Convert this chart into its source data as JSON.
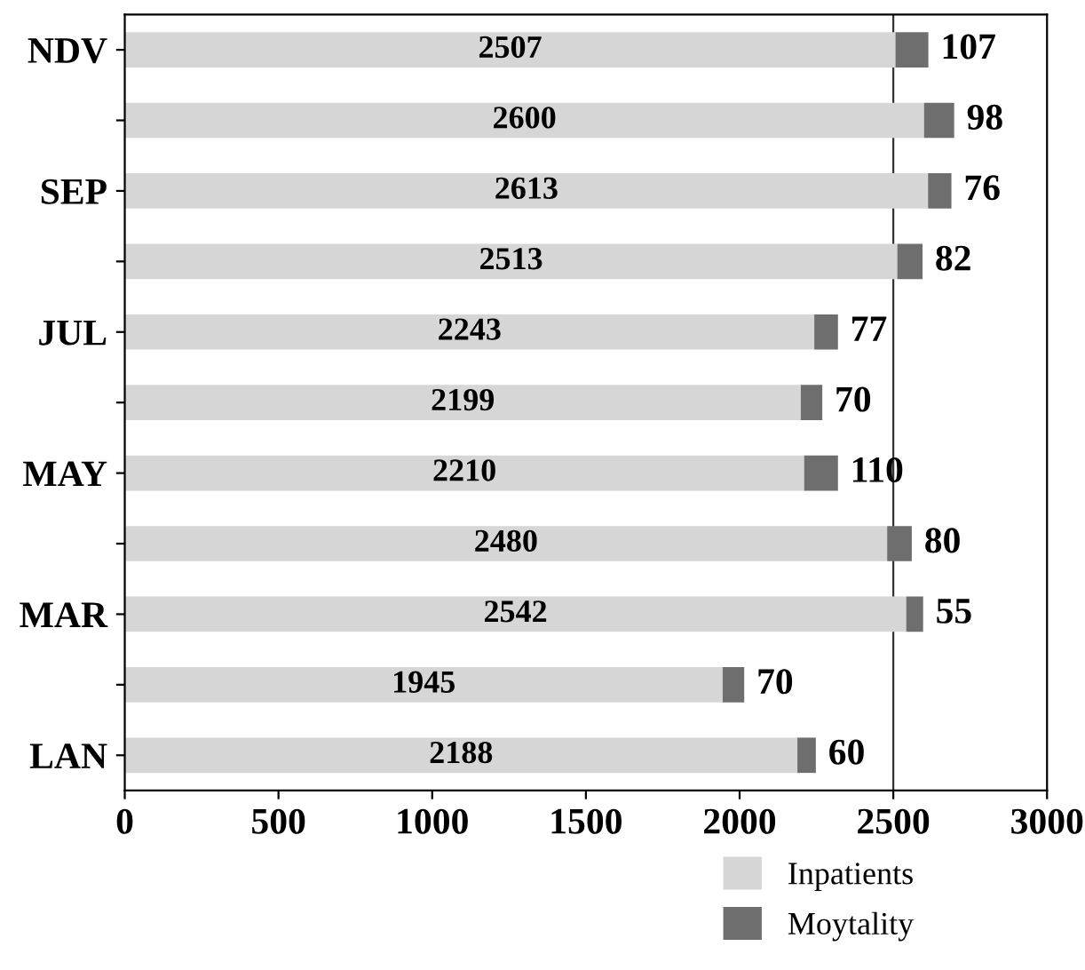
{
  "chart_data": {
    "type": "bar",
    "orientation": "horizontal",
    "stacked": true,
    "categories": [
      "NDV",
      null,
      "SEP",
      null,
      "JUL",
      null,
      "MAY",
      null,
      "MAR",
      null,
      "LAN"
    ],
    "series": [
      {
        "name": "Inpatients",
        "color": "#d6d6d6",
        "values": [
          2507,
          2600,
          2613,
          2513,
          2243,
          2199,
          2210,
          2480,
          2542,
          1945,
          2188
        ]
      },
      {
        "name": "Moytality",
        "color": "#6e6e6e",
        "values": [
          107,
          98,
          76,
          82,
          77,
          70,
          110,
          80,
          55,
          70,
          60
        ]
      }
    ],
    "xlim": [
      0,
      3000
    ],
    "xticks": [
      0,
      500,
      1000,
      1500,
      2000,
      2500,
      3000
    ],
    "ref_lines": [
      {
        "axis": "x",
        "value": 2500
      }
    ],
    "data_labels": true,
    "legend": "bottom right",
    "grid": false
  }
}
